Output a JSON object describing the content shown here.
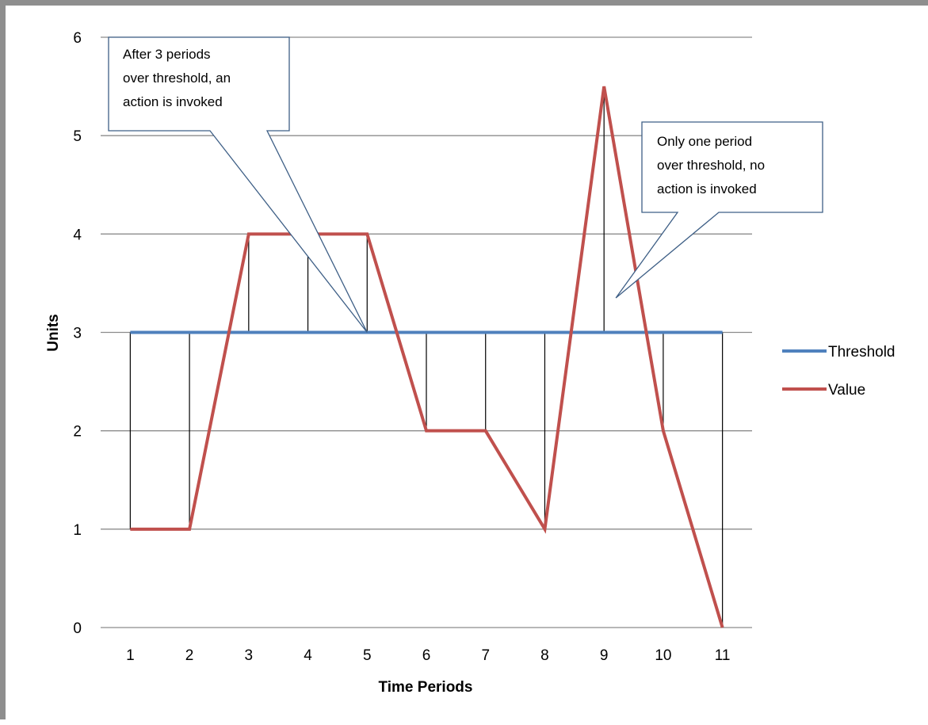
{
  "chart_data": {
    "type": "line",
    "title": "",
    "xlabel": "Time Periods",
    "ylabel": "Units",
    "x": [
      1,
      2,
      3,
      4,
      5,
      6,
      7,
      8,
      9,
      10,
      11
    ],
    "xlim": [
      0.5,
      11.5
    ],
    "ylim": [
      0,
      6
    ],
    "yticks": [
      0,
      1,
      2,
      3,
      4,
      5,
      6
    ],
    "grid": true,
    "legend_position": "right",
    "series": [
      {
        "name": "Threshold",
        "color": "#4f81bd",
        "values": [
          3,
          3,
          3,
          3,
          3,
          3,
          3,
          3,
          3,
          3,
          3
        ]
      },
      {
        "name": "Value",
        "color": "#c0504d",
        "values": [
          1,
          1,
          4,
          4,
          4,
          2,
          2,
          1,
          5.5,
          2,
          0
        ]
      }
    ],
    "drop_lines": true,
    "annotations": [
      {
        "lines": [
          "After 3 periods",
          "over threshold, an",
          "action is invoked"
        ],
        "points_to": {
          "x": 5,
          "y": 3
        }
      },
      {
        "lines": [
          "Only one period",
          "over threshold, no",
          "action is invoked"
        ],
        "points_to": {
          "x": 9.2,
          "y": 3.35
        }
      }
    ]
  }
}
